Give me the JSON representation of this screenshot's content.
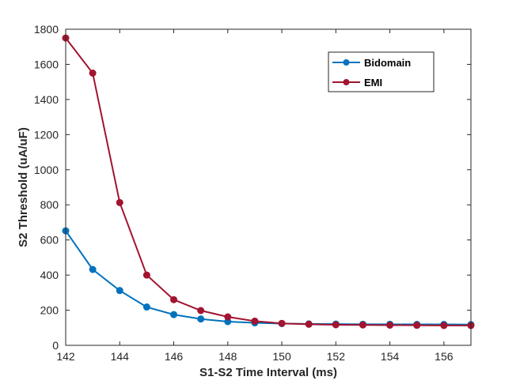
{
  "chart_data": {
    "type": "line",
    "title": "",
    "xlabel": "S1-S2 Time Interval (ms)",
    "ylabel": "S2 Threshold (uA/uF)",
    "xlim": [
      142,
      157
    ],
    "ylim": [
      0,
      1800
    ],
    "xticks": [
      142,
      144,
      146,
      148,
      150,
      152,
      154,
      156
    ],
    "yticks": [
      0,
      200,
      400,
      600,
      800,
      1000,
      1200,
      1400,
      1600,
      1800
    ],
    "x": [
      142,
      143,
      144,
      145,
      146,
      147,
      148,
      149,
      150,
      151,
      152,
      153,
      154,
      155,
      156,
      157
    ],
    "series": [
      {
        "name": "Bidomain",
        "color": "#0072bd",
        "values": [
          652,
          432,
          312,
          218,
          175,
          150,
          135,
          128,
          124,
          122,
          121,
          120,
          120,
          119,
          119,
          118
        ]
      },
      {
        "name": "EMI",
        "color": "#a2142f",
        "values": [
          1750,
          1550,
          813,
          400,
          260,
          198,
          162,
          138,
          125,
          120,
          117,
          116,
          115,
          114,
          113,
          113
        ]
      }
    ],
    "grid": false,
    "legend_position": "top-right",
    "marker": "circle"
  }
}
